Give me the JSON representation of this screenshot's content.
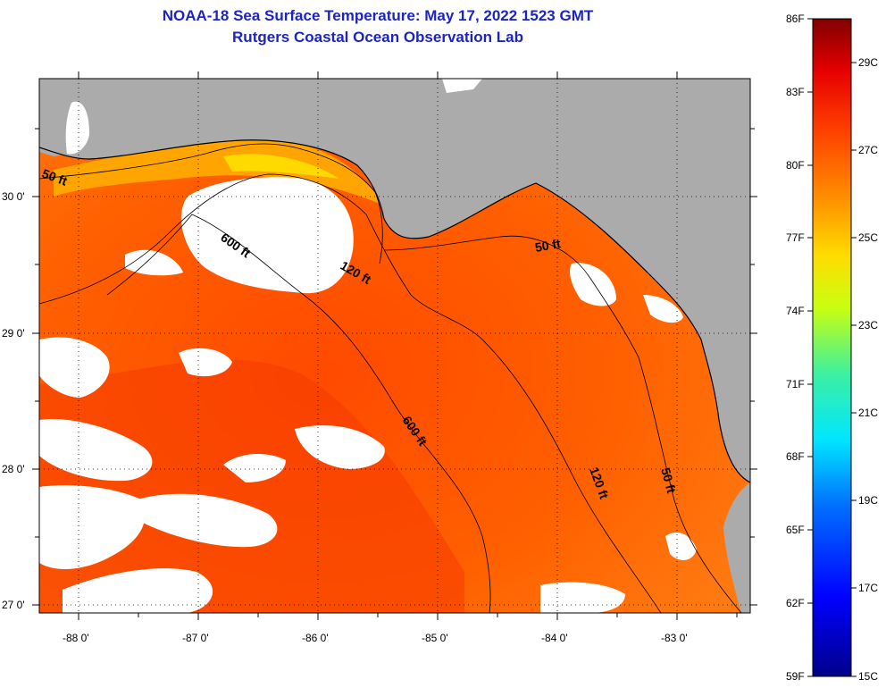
{
  "title": {
    "line1": "NOAA-18 Sea Surface Temperature:  May 17, 2022 1523 GMT",
    "line2": "Rutgers Coastal Ocean Observation Lab"
  },
  "map": {
    "lon_ticks": [
      "-88 0'",
      "-87 0'",
      "-86 0'",
      "-85 0'",
      "-84 0'",
      "-83 0'"
    ],
    "lat_ticks": [
      "30 0'",
      "29 0'",
      "28 0'",
      "27 0'"
    ],
    "contour_labels": [
      "50 ft",
      "600 ft",
      "120 ft",
      "50 ft",
      "600 ft",
      "120 ft",
      "50 ft"
    ]
  },
  "colorbar": {
    "fahrenheit": [
      "86F",
      "83F",
      "80F",
      "77F",
      "74F",
      "71F",
      "68F",
      "65F",
      "62F",
      "59F"
    ],
    "celsius": [
      "29C",
      "27C",
      "25C",
      "23C",
      "21C",
      "19C",
      "17C",
      "15C"
    ]
  },
  "colors": {
    "land": "#ababab",
    "cloud": "#ffffff",
    "water_warm": "#ff6a00",
    "title": "#1c24c4"
  }
}
